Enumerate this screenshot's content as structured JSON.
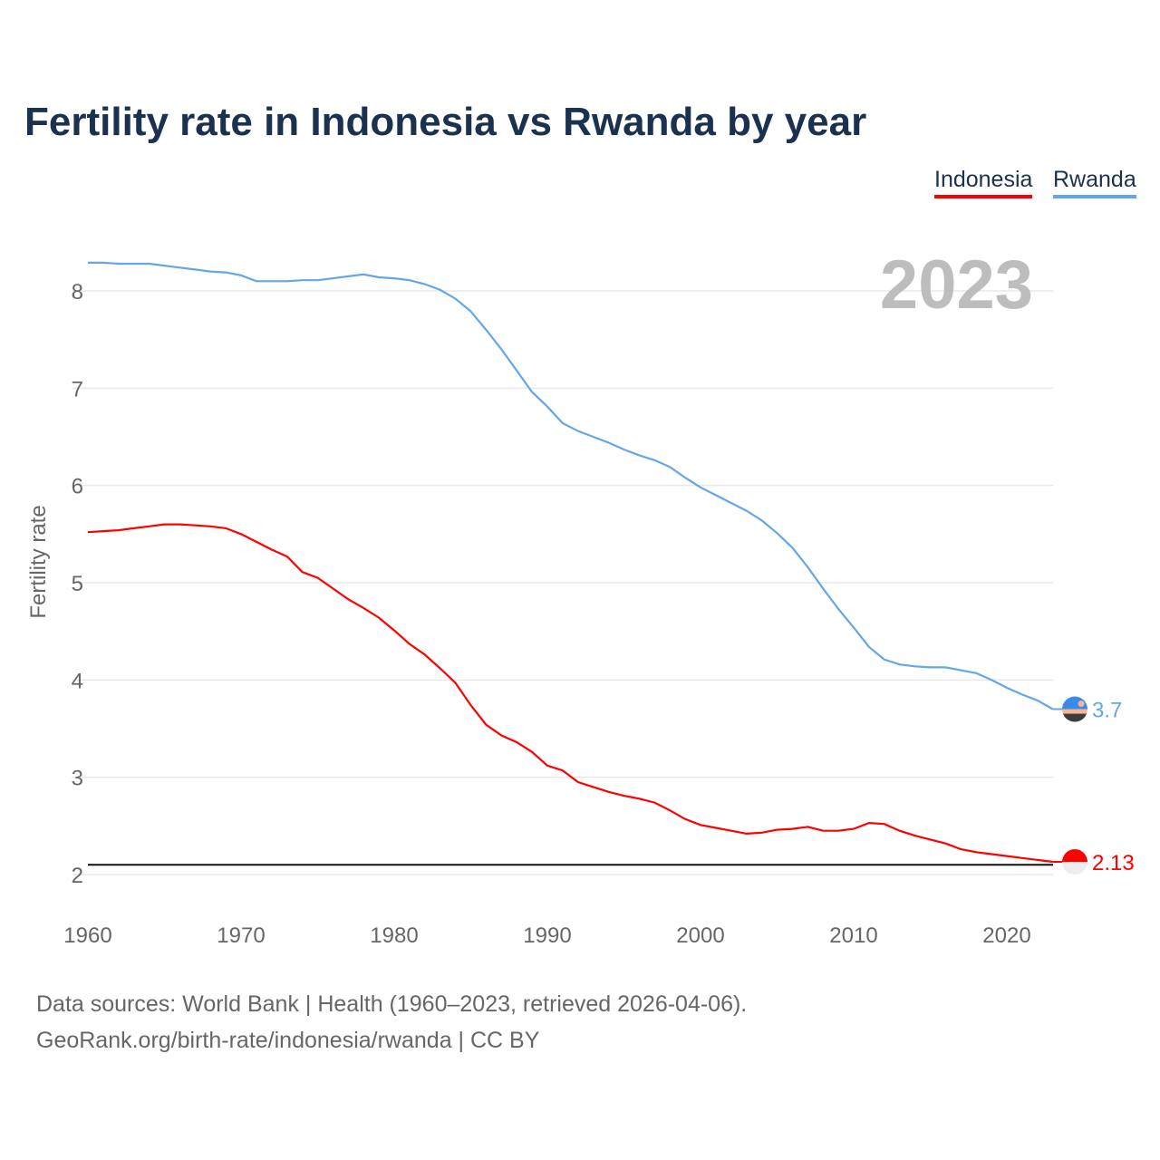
{
  "title": "Fertility rate in Indonesia vs Rwanda by year",
  "legend": [
    "Indonesia",
    "Rwanda"
  ],
  "year_label": "2023",
  "source_line1": "Data sources: World Bank | Health (1960–2023, retrieved 2026-04-06).",
  "source_line2": "GeoRank.org/birth-rate/indonesia/rwanda | CC BY",
  "chart_data": {
    "type": "line",
    "title": "Fertility rate in Indonesia vs Rwanda by year",
    "xlabel": "",
    "ylabel": "Fertility rate",
    "xlim": [
      1960,
      2023
    ],
    "ylim": [
      2,
      8.5
    ],
    "yticks": [
      2,
      3,
      4,
      5,
      6,
      7,
      8
    ],
    "xticks": [
      1960,
      1970,
      1980,
      1990,
      2000,
      2010,
      2020
    ],
    "grid": true,
    "legend_position": "top-right",
    "reference_line": 2.1,
    "x": [
      1960,
      1961,
      1962,
      1963,
      1964,
      1965,
      1966,
      1967,
      1968,
      1969,
      1970,
      1971,
      1972,
      1973,
      1974,
      1975,
      1976,
      1977,
      1978,
      1979,
      1980,
      1981,
      1982,
      1983,
      1984,
      1985,
      1986,
      1987,
      1988,
      1989,
      1990,
      1991,
      1992,
      1993,
      1994,
      1995,
      1996,
      1997,
      1998,
      1999,
      2000,
      2001,
      2002,
      2003,
      2004,
      2005,
      2006,
      2007,
      2008,
      2009,
      2010,
      2011,
      2012,
      2013,
      2014,
      2015,
      2016,
      2017,
      2018,
      2019,
      2020,
      2021,
      2022,
      2023
    ],
    "series": [
      {
        "name": "Indonesia",
        "color": "#ff0000",
        "end_label": "2.13",
        "values": [
          5.52,
          5.53,
          5.54,
          5.56,
          5.58,
          5.6,
          5.6,
          5.59,
          5.58,
          5.56,
          5.5,
          5.42,
          5.34,
          5.27,
          5.11,
          5.05,
          4.94,
          4.83,
          4.74,
          4.64,
          4.51,
          4.37,
          4.26,
          4.12,
          3.97,
          3.74,
          3.54,
          3.43,
          3.36,
          3.26,
          3.12,
          3.07,
          2.95,
          2.9,
          2.85,
          2.81,
          2.78,
          2.74,
          2.66,
          2.57,
          2.51,
          2.48,
          2.45,
          2.42,
          2.43,
          2.46,
          2.47,
          2.49,
          2.45,
          2.45,
          2.47,
          2.53,
          2.52,
          2.45,
          2.4,
          2.36,
          2.32,
          2.26,
          2.23,
          2.21,
          2.19,
          2.17,
          2.15,
          2.13
        ]
      },
      {
        "name": "Rwanda",
        "color": "#63a7ea",
        "end_label": "3.7",
        "values": [
          8.29,
          8.29,
          8.28,
          8.28,
          8.28,
          8.26,
          8.24,
          8.22,
          8.2,
          8.19,
          8.16,
          8.1,
          8.1,
          8.1,
          8.11,
          8.11,
          8.13,
          8.15,
          8.17,
          8.14,
          8.13,
          8.11,
          8.07,
          8.01,
          7.92,
          7.79,
          7.6,
          7.4,
          7.18,
          6.96,
          6.81,
          6.64,
          6.56,
          6.5,
          6.44,
          6.37,
          6.31,
          6.26,
          6.19,
          6.08,
          5.98,
          5.9,
          5.82,
          5.74,
          5.64,
          5.51,
          5.36,
          5.16,
          4.94,
          4.73,
          4.54,
          4.34,
          4.21,
          4.16,
          4.14,
          4.13,
          4.13,
          4.1,
          4.07,
          4.0,
          3.92,
          3.85,
          3.79,
          3.7
        ]
      }
    ]
  }
}
